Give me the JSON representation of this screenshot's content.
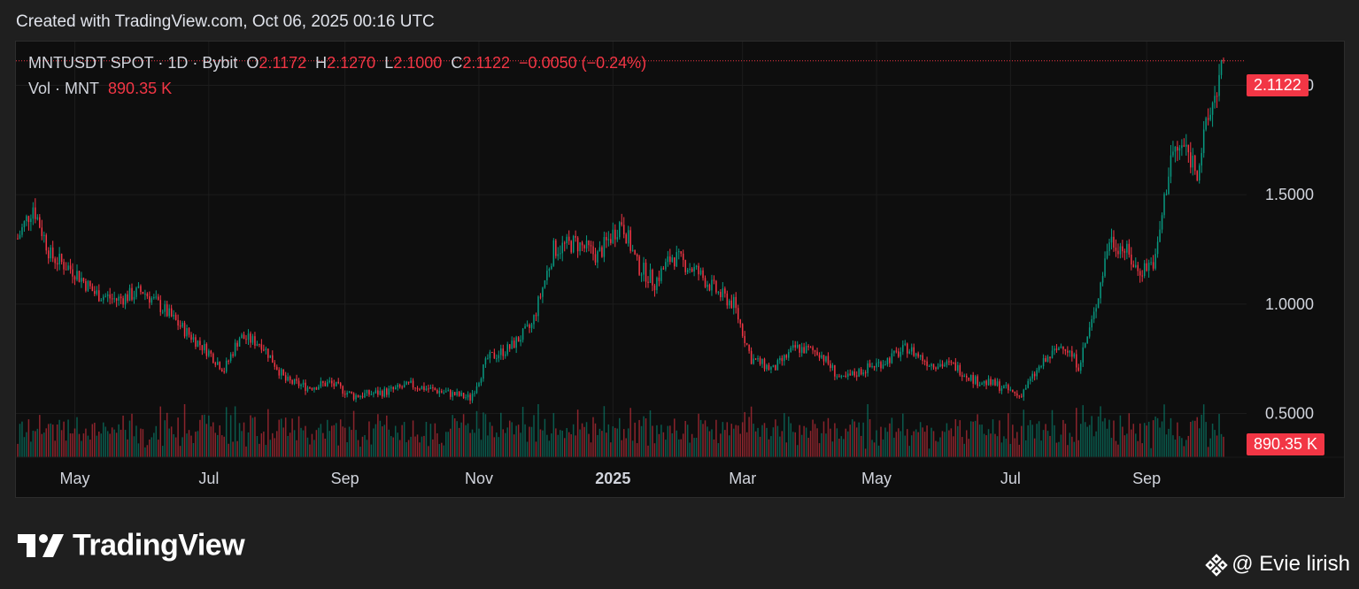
{
  "header": {
    "caption": "Created with TradingView.com, Oct 06, 2025 00:16 UTC"
  },
  "legend": {
    "symbol": "MNTUSDT SPOT · 1D · Bybit",
    "o_label": "O",
    "o_value": "2.1172",
    "h_label": "H",
    "h_value": "2.1270",
    "l_label": "L",
    "l_value": "2.1000",
    "c_label": "C",
    "c_value": "2.1122",
    "change": "−0.0050 (−0.24%)",
    "vol_label": "Vol · MNT",
    "vol_value": "890.35 K"
  },
  "price_tag": "2.1122",
  "volume_tag": "890.35 K",
  "footer": {
    "brand": "TradingView",
    "credit": "@ Evie lirish"
  },
  "colors": {
    "up": "#089981",
    "down": "#f23645",
    "background": "#0e0e0e",
    "grid": "#1c1c1c"
  },
  "chart_data": {
    "type": "candlestick",
    "symbol": "MNTUSDT",
    "interval": "1D",
    "y_axis": {
      "scale": "linear",
      "ylim": [
        0.3,
        2.2
      ],
      "ticks": [
        "0.5000",
        "1.0000",
        "1.5000",
        "2.0000"
      ],
      "tick_values": [
        0.5,
        1.0,
        1.5,
        2.0
      ]
    },
    "x_axis": {
      "ticks": [
        "May",
        "Jul",
        "Sep",
        "Nov",
        "2025",
        "Mar",
        "May",
        "Jul",
        "Sep"
      ],
      "tick_dates": [
        "2024-05-01",
        "2024-07-01",
        "2024-09-01",
        "2024-11-01",
        "2025-01-01",
        "2025-03-01",
        "2025-05-01",
        "2025-07-01",
        "2025-09-01"
      ],
      "start_date": "2024-04-05",
      "end_date": "2025-10-06"
    },
    "grid": true,
    "close_series_approx": [
      [
        "2024-04-05",
        1.3
      ],
      [
        "2024-04-12",
        1.45
      ],
      [
        "2024-04-20",
        1.22
      ],
      [
        "2024-05-01",
        1.15
      ],
      [
        "2024-05-10",
        1.05
      ],
      [
        "2024-05-20",
        1.02
      ],
      [
        "2024-06-01",
        1.06
      ],
      [
        "2024-06-10",
        0.98
      ],
      [
        "2024-06-20",
        0.88
      ],
      [
        "2024-07-01",
        0.78
      ],
      [
        "2024-07-08",
        0.7
      ],
      [
        "2024-07-15",
        0.85
      ],
      [
        "2024-07-25",
        0.82
      ],
      [
        "2024-08-05",
        0.65
      ],
      [
        "2024-08-15",
        0.62
      ],
      [
        "2024-08-25",
        0.64
      ],
      [
        "2024-09-05",
        0.58
      ],
      [
        "2024-09-20",
        0.6
      ],
      [
        "2024-10-01",
        0.63
      ],
      [
        "2024-10-15",
        0.6
      ],
      [
        "2024-10-28",
        0.57
      ],
      [
        "2024-11-05",
        0.75
      ],
      [
        "2024-11-15",
        0.8
      ],
      [
        "2024-11-25",
        0.9
      ],
      [
        "2024-12-05",
        1.25
      ],
      [
        "2024-12-15",
        1.28
      ],
      [
        "2024-12-25",
        1.22
      ],
      [
        "2025-01-05",
        1.38
      ],
      [
        "2025-01-12",
        1.18
      ],
      [
        "2025-01-20",
        1.1
      ],
      [
        "2025-01-28",
        1.22
      ],
      [
        "2025-02-08",
        1.15
      ],
      [
        "2025-02-18",
        1.05
      ],
      [
        "2025-02-25",
        1.0
      ],
      [
        "2025-03-05",
        0.75
      ],
      [
        "2025-03-15",
        0.7
      ],
      [
        "2025-03-25",
        0.8
      ],
      [
        "2025-04-05",
        0.78
      ],
      [
        "2025-04-15",
        0.65
      ],
      [
        "2025-04-25",
        0.7
      ],
      [
        "2025-05-05",
        0.74
      ],
      [
        "2025-05-15",
        0.8
      ],
      [
        "2025-05-25",
        0.73
      ],
      [
        "2025-06-05",
        0.72
      ],
      [
        "2025-06-15",
        0.65
      ],
      [
        "2025-06-25",
        0.63
      ],
      [
        "2025-07-05",
        0.58
      ],
      [
        "2025-07-15",
        0.72
      ],
      [
        "2025-07-25",
        0.82
      ],
      [
        "2025-08-01",
        0.72
      ],
      [
        "2025-08-08",
        0.95
      ],
      [
        "2025-08-15",
        1.3
      ],
      [
        "2025-08-22",
        1.25
      ],
      [
        "2025-08-28",
        1.15
      ],
      [
        "2025-09-05",
        1.2
      ],
      [
        "2025-09-12",
        1.68
      ],
      [
        "2025-09-18",
        1.72
      ],
      [
        "2025-09-24",
        1.62
      ],
      [
        "2025-09-30",
        1.88
      ],
      [
        "2025-10-06",
        2.11
      ]
    ],
    "last_candle": {
      "open": 2.1172,
      "high": 2.127,
      "low": 2.1,
      "close": 2.1122
    },
    "last_volume": "890.35 K"
  }
}
